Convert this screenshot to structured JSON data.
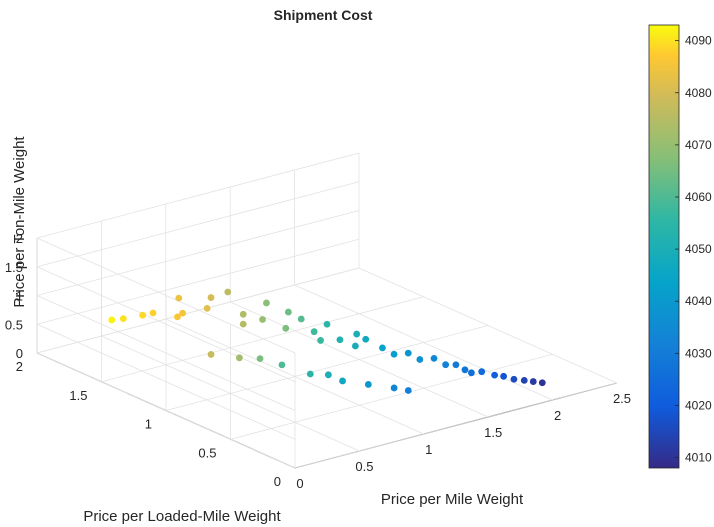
{
  "chart_data": {
    "type": "scatter",
    "title": "Shipment Cost",
    "xlabel": "Price per Mile Weight",
    "ylabel": "Price per Loaded-Mile Weight",
    "zlabel": "Price per Ton-Mile Weight",
    "xlim": [
      0,
      2.5
    ],
    "ylim": [
      0,
      2
    ],
    "zlim": [
      0,
      2
    ],
    "x_ticks": [
      "0",
      "0.5",
      "1",
      "1.5",
      "2",
      "2.5"
    ],
    "y_ticks": [
      "0",
      "0.5",
      "1",
      "1.5",
      "2"
    ],
    "z_ticks": [
      "0",
      "0.5",
      "1",
      "1.5",
      "2"
    ],
    "grid": true,
    "colormap": "parula",
    "colorbar": {
      "range": [
        4008,
        4093
      ],
      "ticks": [
        "4010",
        "4020",
        "4030",
        "4040",
        "4050",
        "4060",
        "4070",
        "4080",
        "4090"
      ]
    },
    "points": {
      "x": [
        0.38,
        0.42,
        0.5,
        0.52,
        0.6,
        0.58,
        0.64,
        0.7,
        0.72,
        0.78,
        0.8,
        0.85,
        0.88,
        0.9,
        0.95,
        0.98,
        1.0,
        1.05,
        1.08,
        1.1,
        1.15,
        1.2,
        1.22,
        1.25,
        1.3,
        1.35,
        1.4,
        1.45,
        1.5,
        1.55,
        1.6,
        1.62,
        1.65,
        1.7,
        1.75,
        1.8,
        1.85,
        1.9,
        1.95,
        2.0,
        0.55,
        0.62,
        0.68,
        0.75,
        0.82,
        0.88,
        0.92,
        1.02,
        1.12,
        1.18
      ],
      "y": [
        1.8,
        1.75,
        1.6,
        1.7,
        1.5,
        1.45,
        1.55,
        1.35,
        1.4,
        1.3,
        1.2,
        1.25,
        1.1,
        1.15,
        1.0,
        1.05,
        0.95,
        0.9,
        0.88,
        0.85,
        0.8,
        0.72,
        0.75,
        0.7,
        0.62,
        0.58,
        0.52,
        0.48,
        0.42,
        0.38,
        0.35,
        0.3,
        0.28,
        0.25,
        0.2,
        0.18,
        0.15,
        0.12,
        0.1,
        0.08,
        1.2,
        1.05,
        0.95,
        0.85,
        0.7,
        0.62,
        0.55,
        0.45,
        0.35,
        0.3
      ],
      "z": [
        0.55,
        0.6,
        0.8,
        0.65,
        1.1,
        0.9,
        0.7,
        1.2,
        0.95,
        1.3,
        1.0,
        0.75,
        1.25,
        0.9,
        1.15,
        0.8,
        1.05,
        0.85,
        0.7,
        1.0,
        0.75,
        0.9,
        0.65,
        0.8,
        0.7,
        0.6,
        0.65,
        0.55,
        0.6,
        0.5,
        0.5,
        0.45,
        0.4,
        0.42,
        0.38,
        0.35,
        0.3,
        0.28,
        0.25,
        0.22,
        0.45,
        0.5,
        0.55,
        0.5,
        0.45,
        0.48,
        0.42,
        0.4,
        0.38,
        0.35
      ],
      "cost": [
        4092,
        4090,
        4088,
        4089,
        4084,
        4085,
        4086,
        4080,
        4082,
        4076,
        4074,
        4075,
        4068,
        4070,
        4064,
        4066,
        4061,
        4058,
        4057,
        4055,
        4052,
        4050,
        4049,
        4047,
        4044,
        4042,
        4039,
        4037,
        4034,
        4032,
        4030,
        4028,
        4026,
        4024,
        4021,
        4018,
        4016,
        4014,
        4012,
        4010,
        4078,
        4072,
        4066,
        4060,
        4054,
        4050,
        4046,
        4040,
        4034,
        4031
      ]
    }
  }
}
